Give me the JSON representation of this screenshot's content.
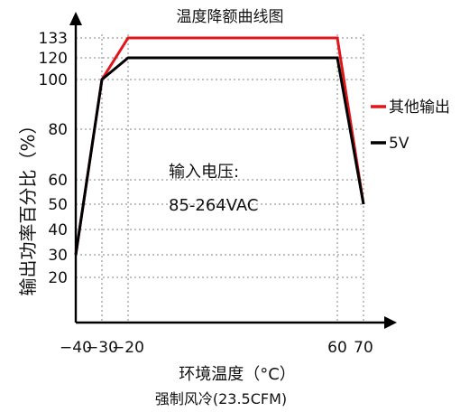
{
  "chart_data": {
    "type": "line",
    "title": "温度降额曲线图",
    "xlabel": "环境温度（°C）",
    "ylabel": "输出功率百分比（%）",
    "footnote": "强制风冷(23.5CFM)",
    "annotation_lines": [
      "输入电压:",
      "85-264VAC"
    ],
    "xlim": [
      -40,
      70
    ],
    "ylim": [
      0,
      133
    ],
    "x_ticks": [
      -40,
      -30,
      -20,
      60,
      70
    ],
    "x_tick_labels": [
      "−40",
      "−30",
      "−20",
      "60",
      "70"
    ],
    "y_ticks": [
      20,
      30,
      40,
      50,
      60,
      80,
      100,
      120,
      133
    ],
    "y_tick_labels": [
      "20",
      "30",
      "40",
      "50",
      "60",
      "80",
      "100",
      "120",
      "133"
    ],
    "grid": true,
    "legend_position": "right",
    "series": [
      {
        "name": "其他输出",
        "color": "#e0161b",
        "x": [
          -40,
          -30,
          -20,
          60,
          70
        ],
        "y": [
          30,
          100,
          133,
          133,
          50
        ]
      },
      {
        "name": "5V",
        "color": "#000000",
        "x": [
          -40,
          -30,
          -20,
          60,
          70
        ],
        "y": [
          30,
          100,
          120,
          120,
          50
        ]
      }
    ]
  }
}
